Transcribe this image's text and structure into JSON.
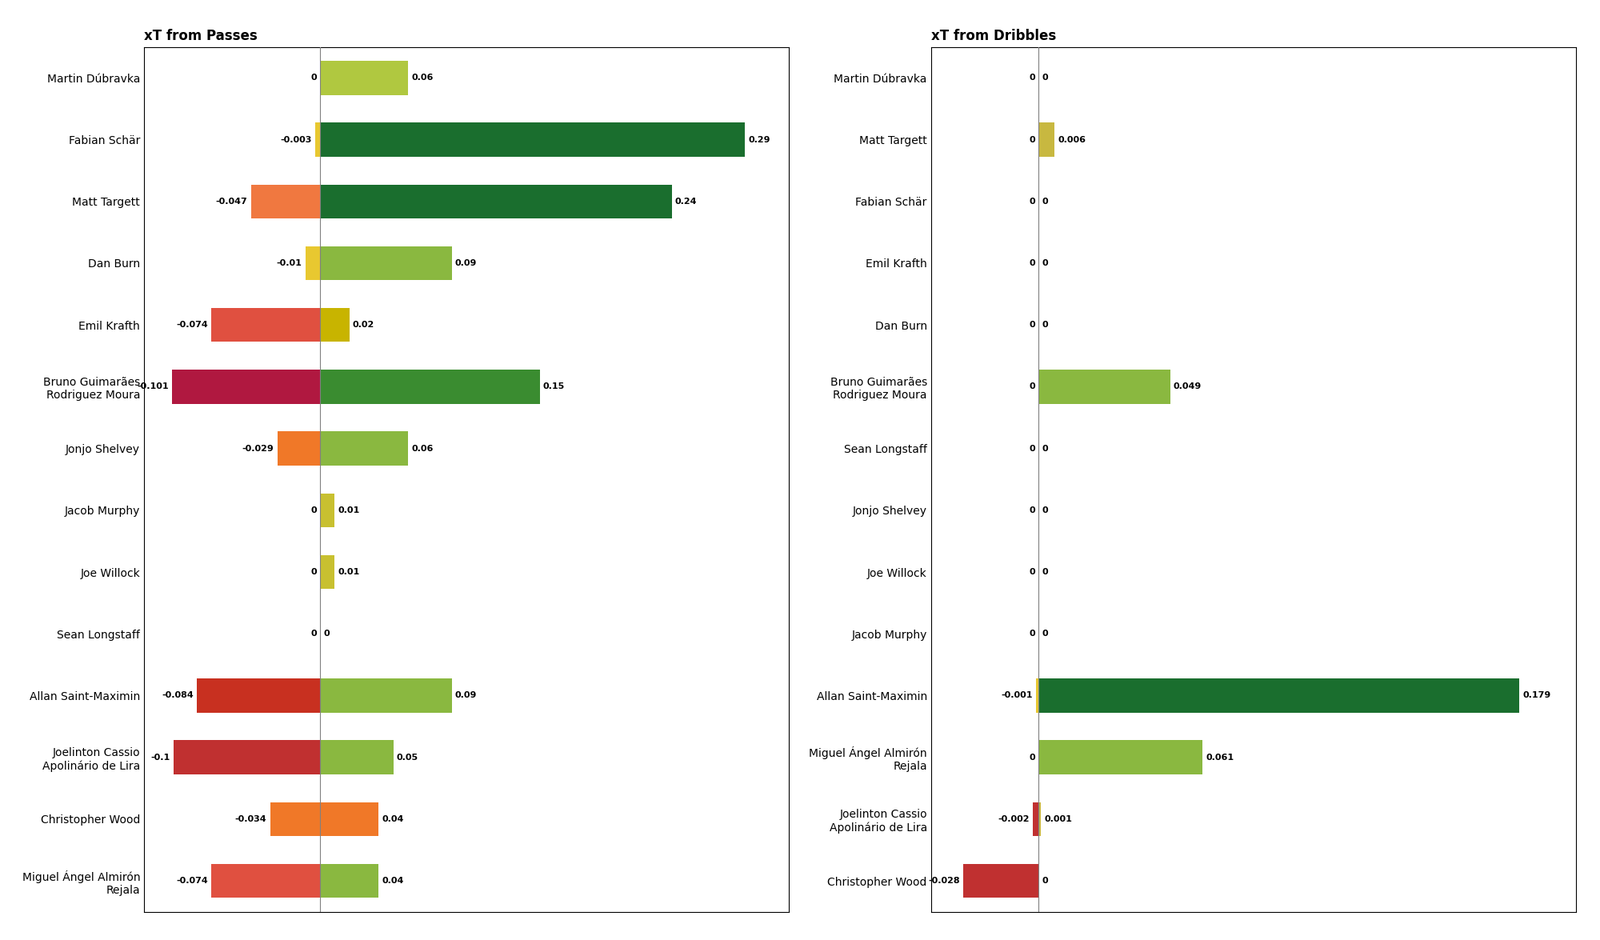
{
  "chart_data": [
    {
      "type": "bar",
      "orientation": "horizontal",
      "title": "xT from Passes",
      "categories": [
        "Martin Dúbravka",
        "Fabian Schär",
        "Matt Targett",
        "Dan Burn",
        "Emil Krafth",
        "Bruno Guimarães\nRodriguez Moura",
        "Jonjo Shelvey",
        "Jacob Murphy",
        "Joe Willock",
        "Sean Longstaff",
        "Allan Saint-Maximin",
        "Joelinton Cassio\nApolinário de Lira",
        "Christopher Wood",
        "Miguel Ángel Almirón\nRejala"
      ],
      "series": [
        {
          "values": [
            0,
            -0.003,
            -0.047,
            -0.01,
            -0.074,
            -0.101,
            -0.029,
            0,
            0,
            0,
            -0.084,
            -0.1,
            -0.034,
            -0.074
          ],
          "colors": [
            "#c8b840",
            "#e8c830",
            "#f07840",
            "#e8c830",
            "#e05040",
            "#b01840",
            "#f07828",
            "#e8c830",
            "#e8c830",
            "#e8c830",
            "#c83020",
            "#c03030",
            "#f07828",
            "#e05040"
          ]
        },
        {
          "values": [
            0.06,
            0.29,
            0.24,
            0.09,
            0.02,
            0.15,
            0.06,
            0.01,
            0.01,
            0,
            0.09,
            0.05,
            0.04,
            0.04
          ],
          "colors": [
            "#b0c840",
            "#1a6e2e",
            "#1a6e2e",
            "#8ab840",
            "#c8b400",
            "#3a8c30",
            "#8ab840",
            "#c8c030",
            "#c8c030",
            "#c8c030",
            "#8ab840",
            "#8ab840",
            "#f07828",
            "#8ab840"
          ]
        }
      ],
      "xlim": [
        -0.12,
        0.32
      ],
      "xticks": [],
      "tick_labels": "y",
      "data_labels": true,
      "grid": false
    },
    {
      "type": "bar",
      "orientation": "horizontal",
      "title": "xT from Dribbles",
      "categories": [
        "Martin Dúbravka",
        "Matt Targett",
        "Fabian Schär",
        "Emil Krafth",
        "Dan Burn",
        "Bruno Guimarães\nRodriguez Moura",
        "Sean Longstaff",
        "Jonjo Shelvey",
        "Joe Willock",
        "Jacob Murphy",
        "Allan Saint-Maximin",
        "Miguel Ángel Almirón\nRejala",
        "Joelinton Cassio\nApolinário de Lira",
        "Christopher Wood"
      ],
      "series": [
        {
          "values": [
            0,
            0,
            0,
            0,
            0,
            0,
            0,
            0,
            0,
            0,
            -0.001,
            0,
            -0.002,
            -0.028
          ],
          "colors": [
            "#e8c830",
            "#e8c830",
            "#e8c830",
            "#e8c830",
            "#e8c830",
            "#e8c830",
            "#e8c830",
            "#e8c830",
            "#e8c830",
            "#e8c830",
            "#e8c830",
            "#e8c830",
            "#c03030",
            "#c03030"
          ]
        },
        {
          "values": [
            0,
            0.006,
            0,
            0,
            0,
            0.049,
            0,
            0,
            0,
            0,
            0.179,
            0.061,
            0.001,
            0
          ],
          "colors": [
            "#e8c830",
            "#c8b840",
            "#e8c830",
            "#e8c830",
            "#e8c830",
            "#8ab840",
            "#e8c830",
            "#e8c830",
            "#e8c830",
            "#e8c830",
            "#1a6e2e",
            "#8ab840",
            "#c8b840",
            "#e8c830"
          ]
        }
      ],
      "xlim": [
        -0.04,
        0.2
      ],
      "xticks": [],
      "tick_labels": "y",
      "data_labels": true,
      "grid": false
    }
  ]
}
